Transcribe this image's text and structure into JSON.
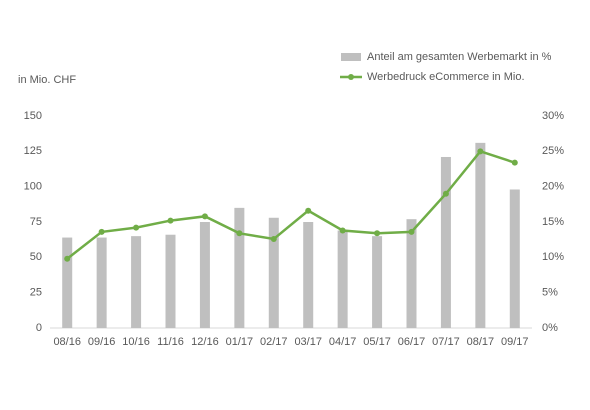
{
  "chart_data": {
    "type": "combo",
    "y_label": "in Mio. CHF",
    "categories": [
      "08/16",
      "09/16",
      "10/16",
      "11/16",
      "12/16",
      "01/17",
      "02/17",
      "03/17",
      "04/17",
      "05/17",
      "06/17",
      "07/17",
      "08/17",
      "09/17"
    ],
    "series": [
      {
        "name": "Anteil am gesamten Werbemarkt in %",
        "type": "bar",
        "axis": "y2",
        "color": "#bfbfbf",
        "values": [
          12.8,
          12.8,
          13,
          13.2,
          15,
          17,
          15.6,
          15,
          13.8,
          13,
          15.4,
          24.2,
          26.2,
          19.6
        ]
      },
      {
        "name": "Werbedruck eCommerce in Mio.",
        "type": "line",
        "color": "#70ad47",
        "values": [
          49,
          68,
          71,
          76,
          79,
          67,
          63,
          83,
          69,
          67,
          68,
          95,
          125,
          117
        ]
      }
    ],
    "ylim": [
      0,
      150
    ],
    "yticks": [
      0,
      25,
      50,
      75,
      100,
      125,
      150
    ],
    "y2lim": [
      0,
      30
    ],
    "y2ticks": [
      {
        "value": 0,
        "label": "0%"
      },
      {
        "value": 5,
        "label": "5%"
      },
      {
        "value": 10,
        "label": "10%"
      },
      {
        "value": 15,
        "label": "15%"
      },
      {
        "value": 20,
        "label": "20%"
      },
      {
        "value": 25,
        "label": "25%"
      },
      {
        "value": 30,
        "label": "30%"
      }
    ],
    "grid": false
  }
}
